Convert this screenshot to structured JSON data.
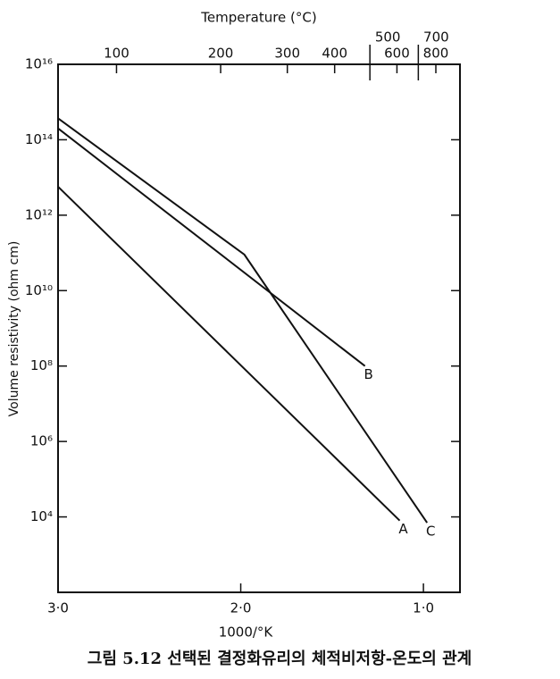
{
  "chart_data": {
    "type": "line",
    "title": "Temperature (°C)",
    "xlabel": "1000/°K",
    "ylabel": "Volume resistivity (ohm cm)",
    "caption": "그림 5.12 선택된 결정화유리의 체적비저항-온도의 관계",
    "xlim": [
      3.0,
      0.8
    ],
    "ylim": [
      100,
      1e+16
    ],
    "yscale": "log",
    "xticks": [
      {
        "value": 3.0,
        "label": "3·0"
      },
      {
        "value": 2.0,
        "label": "2·0"
      },
      {
        "value": 1.0,
        "label": "1·0"
      }
    ],
    "x2ticks": [
      {
        "value": 2.68,
        "label": "100"
      },
      {
        "value": 2.11,
        "label": "200"
      },
      {
        "value": 1.745,
        "label": "300"
      },
      {
        "value": 1.486,
        "label": "400"
      },
      {
        "value": 1.293,
        "label": "500"
      },
      {
        "value": 1.145,
        "label": "600"
      },
      {
        "value": 1.028,
        "label": "700"
      },
      {
        "value": 0.932,
        "label": "800"
      }
    ],
    "yticks": [
      {
        "value": 1e+16,
        "label": "10¹⁶"
      },
      {
        "value": 100000000000000.0,
        "label": "10¹⁴"
      },
      {
        "value": 1000000000000.0,
        "label": "10¹²"
      },
      {
        "value": 10000000000.0,
        "label": "10¹⁰"
      },
      {
        "value": 100000000.0,
        "label": "10⁸"
      },
      {
        "value": 1000000.0,
        "label": "10⁶"
      },
      {
        "value": 10000.0,
        "label": "10⁴"
      }
    ],
    "series": [
      {
        "name": "A",
        "color": "#111111",
        "x": [
          3.0,
          1.13
        ],
        "values": [
          5700000000000.0,
          8000.0
        ]
      },
      {
        "name": "B",
        "color": "#111111",
        "x": [
          3.0,
          1.32
        ],
        "values": [
          200000000000000.0,
          100000000.0
        ]
      },
      {
        "name": "C",
        "color": "#111111",
        "x": [
          3.0,
          1.98,
          0.98
        ],
        "values": [
          370000000000000.0,
          90000000000.0,
          7000.0
        ]
      }
    ]
  }
}
